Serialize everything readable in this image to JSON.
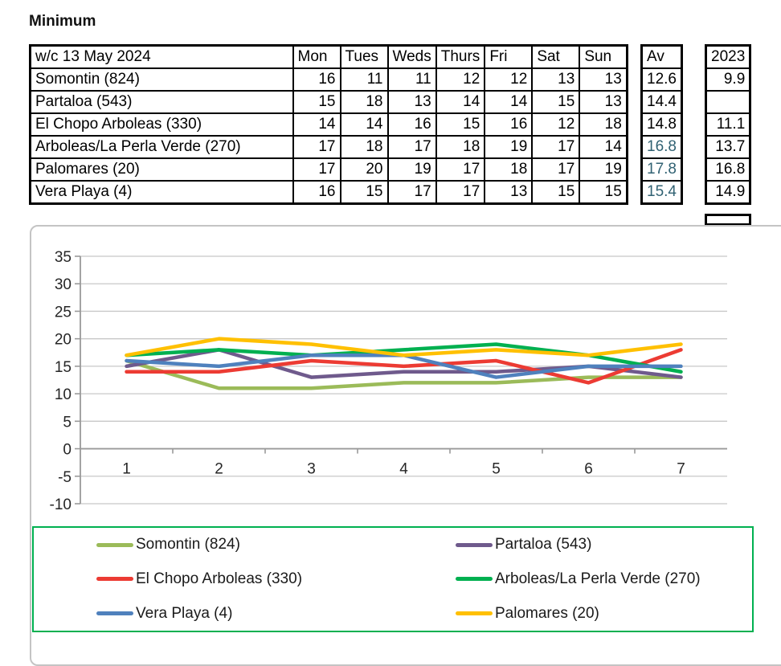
{
  "title": "Minimum",
  "table": {
    "week_label": "w/c 13 May 2024",
    "day_headers": [
      "Mon",
      "Tues",
      "Weds",
      "Thurs",
      "Fri",
      "Sat",
      "Sun"
    ],
    "av_header": "Av",
    "year_header": "2023",
    "rows": [
      {
        "name": "Somontin (824)",
        "values": [
          16,
          11,
          11,
          12,
          12,
          13,
          13
        ],
        "av": "12.6",
        "av_teal": false,
        "prev": "9.9"
      },
      {
        "name": "Partaloa (543)",
        "values": [
          15,
          18,
          13,
          14,
          14,
          15,
          13
        ],
        "av": "14.4",
        "av_teal": false,
        "prev": null
      },
      {
        "name": "El Chopo Arboleas (330)",
        "values": [
          14,
          14,
          16,
          15,
          16,
          12,
          18
        ],
        "av": "14.8",
        "av_teal": false,
        "prev": "11.1"
      },
      {
        "name": "Arboleas/La Perla Verde (270)",
        "values": [
          17,
          18,
          17,
          18,
          19,
          17,
          14
        ],
        "av": "16.8",
        "av_teal": true,
        "prev": "13.7"
      },
      {
        "name": "Palomares (20)",
        "values": [
          17,
          20,
          19,
          17,
          18,
          17,
          19
        ],
        "av": "17.8",
        "av_teal": true,
        "prev": "16.8"
      },
      {
        "name": "Vera Playa (4)",
        "values": [
          16,
          15,
          17,
          17,
          13,
          15,
          15
        ],
        "av": "15.4",
        "av_teal": true,
        "prev": "14.9"
      }
    ]
  },
  "chart_data": {
    "type": "line",
    "x": [
      1,
      2,
      3,
      4,
      5,
      6,
      7
    ],
    "xtick_labels": [
      "1",
      "2",
      "3",
      "4",
      "5",
      "6",
      "7"
    ],
    "series": [
      {
        "name": "Somontin (824)",
        "color": "#9BBB59",
        "values": [
          16,
          11,
          11,
          12,
          12,
          13,
          13
        ]
      },
      {
        "name": "Partaloa (543)",
        "color": "#6F5A8C",
        "values": [
          15,
          18,
          13,
          14,
          14,
          15,
          13
        ]
      },
      {
        "name": "El Chopo Arboleas (330)",
        "color": "#EC3B33",
        "values": [
          14,
          14,
          16,
          15,
          16,
          12,
          18
        ]
      },
      {
        "name": "Arboleas/La Perla Verde (270)",
        "color": "#00B050",
        "values": [
          17,
          18,
          17,
          18,
          19,
          17,
          14
        ]
      },
      {
        "name": "Vera Playa (4)",
        "color": "#4F81BD",
        "values": [
          16,
          15,
          17,
          17,
          13,
          15,
          15
        ]
      },
      {
        "name": "Palomares (20)",
        "color": "#FFC000",
        "values": [
          17,
          20,
          19,
          17,
          18,
          17,
          19
        ]
      }
    ],
    "ylim": [
      -10,
      35
    ],
    "ytick_step": 5,
    "grid": true,
    "legend_position": "bottom",
    "legend_order": [
      "Somontin (824)",
      "Partaloa (543)",
      "El Chopo Arboleas (330)",
      "Arboleas/La Perla Verde (270)",
      "Vera Playa (4)",
      "Palomares (20)"
    ]
  },
  "colors": {
    "header_fill": "#FAE3D5",
    "na_fill": "#C0C0C0",
    "teal_text": "#316273",
    "legend_border": "#00B050",
    "grid_line": "#C8C8C8",
    "axis_line": "#9A9A9A",
    "chart_border": "#C4C4C4",
    "axis_text": "#262626"
  }
}
